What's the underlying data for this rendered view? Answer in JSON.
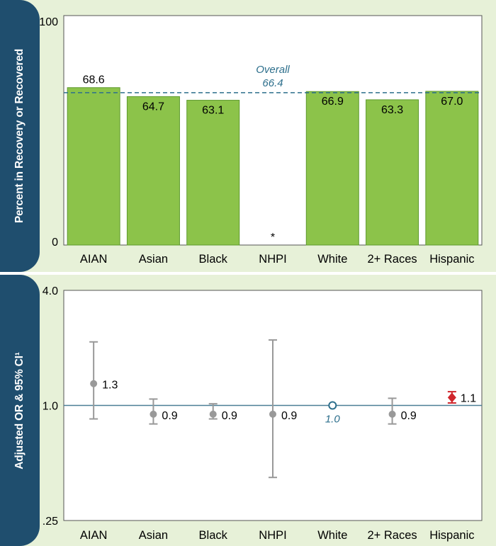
{
  "chart_data": [
    {
      "type": "bar",
      "ylabel": "Percent in Recovery or Recovered",
      "ylim": [
        0,
        100
      ],
      "yticks": [
        "0",
        "100"
      ],
      "categories": [
        "AIAN",
        "Asian",
        "Black",
        "NHPI",
        "White",
        "2+ Races",
        "Hispanic"
      ],
      "values": [
        68.6,
        64.7,
        63.1,
        null,
        66.9,
        63.3,
        67.0
      ],
      "value_labels": [
        "68.6",
        "64.7",
        "63.1",
        "*",
        "66.9",
        "63.3",
        "67.0"
      ],
      "reference_line": {
        "label": "Overall",
        "value": 66.4,
        "value_label": "66.4"
      },
      "colors": {
        "bar": "#8cc34a",
        "bar_border": "#5e9a2e",
        "reference": "#2d6f8c"
      }
    },
    {
      "type": "scatter",
      "ylabel": "Adjusted OR & 95% CI¹",
      "yscale": "log",
      "ylim": [
        0.25,
        4.0
      ],
      "yticks": [
        ".25",
        "1.0",
        "4.0"
      ],
      "reference_value": 1.0,
      "categories": [
        "AIAN",
        "Asian",
        "Black",
        "NHPI",
        "White",
        "2+ Races",
        "Hispanic"
      ],
      "points": [
        {
          "or": 1.3,
          "ci": [
            0.85,
            2.15
          ],
          "label": "1.3",
          "marker": "circle",
          "color": "#999999"
        },
        {
          "or": 0.9,
          "ci": [
            0.8,
            1.08
          ],
          "label": "0.9",
          "marker": "circle",
          "color": "#999999"
        },
        {
          "or": 0.9,
          "ci": [
            0.85,
            1.02
          ],
          "label": "0.9",
          "marker": "circle",
          "color": "#999999"
        },
        {
          "or": 0.9,
          "ci": [
            0.42,
            2.2
          ],
          "label": "0.9",
          "marker": "circle",
          "color": "#999999"
        },
        {
          "or": 1.0,
          "ci": null,
          "label": "1.0",
          "marker": "open-circle",
          "color": "#2d6f8c"
        },
        {
          "or": 0.9,
          "ci": [
            0.8,
            1.09
          ],
          "label": "0.9",
          "marker": "circle",
          "color": "#999999"
        },
        {
          "or": 1.1,
          "ci": [
            1.03,
            1.18
          ],
          "label": "1.1",
          "marker": "diamond",
          "color": "#d0262c"
        }
      ]
    }
  ]
}
